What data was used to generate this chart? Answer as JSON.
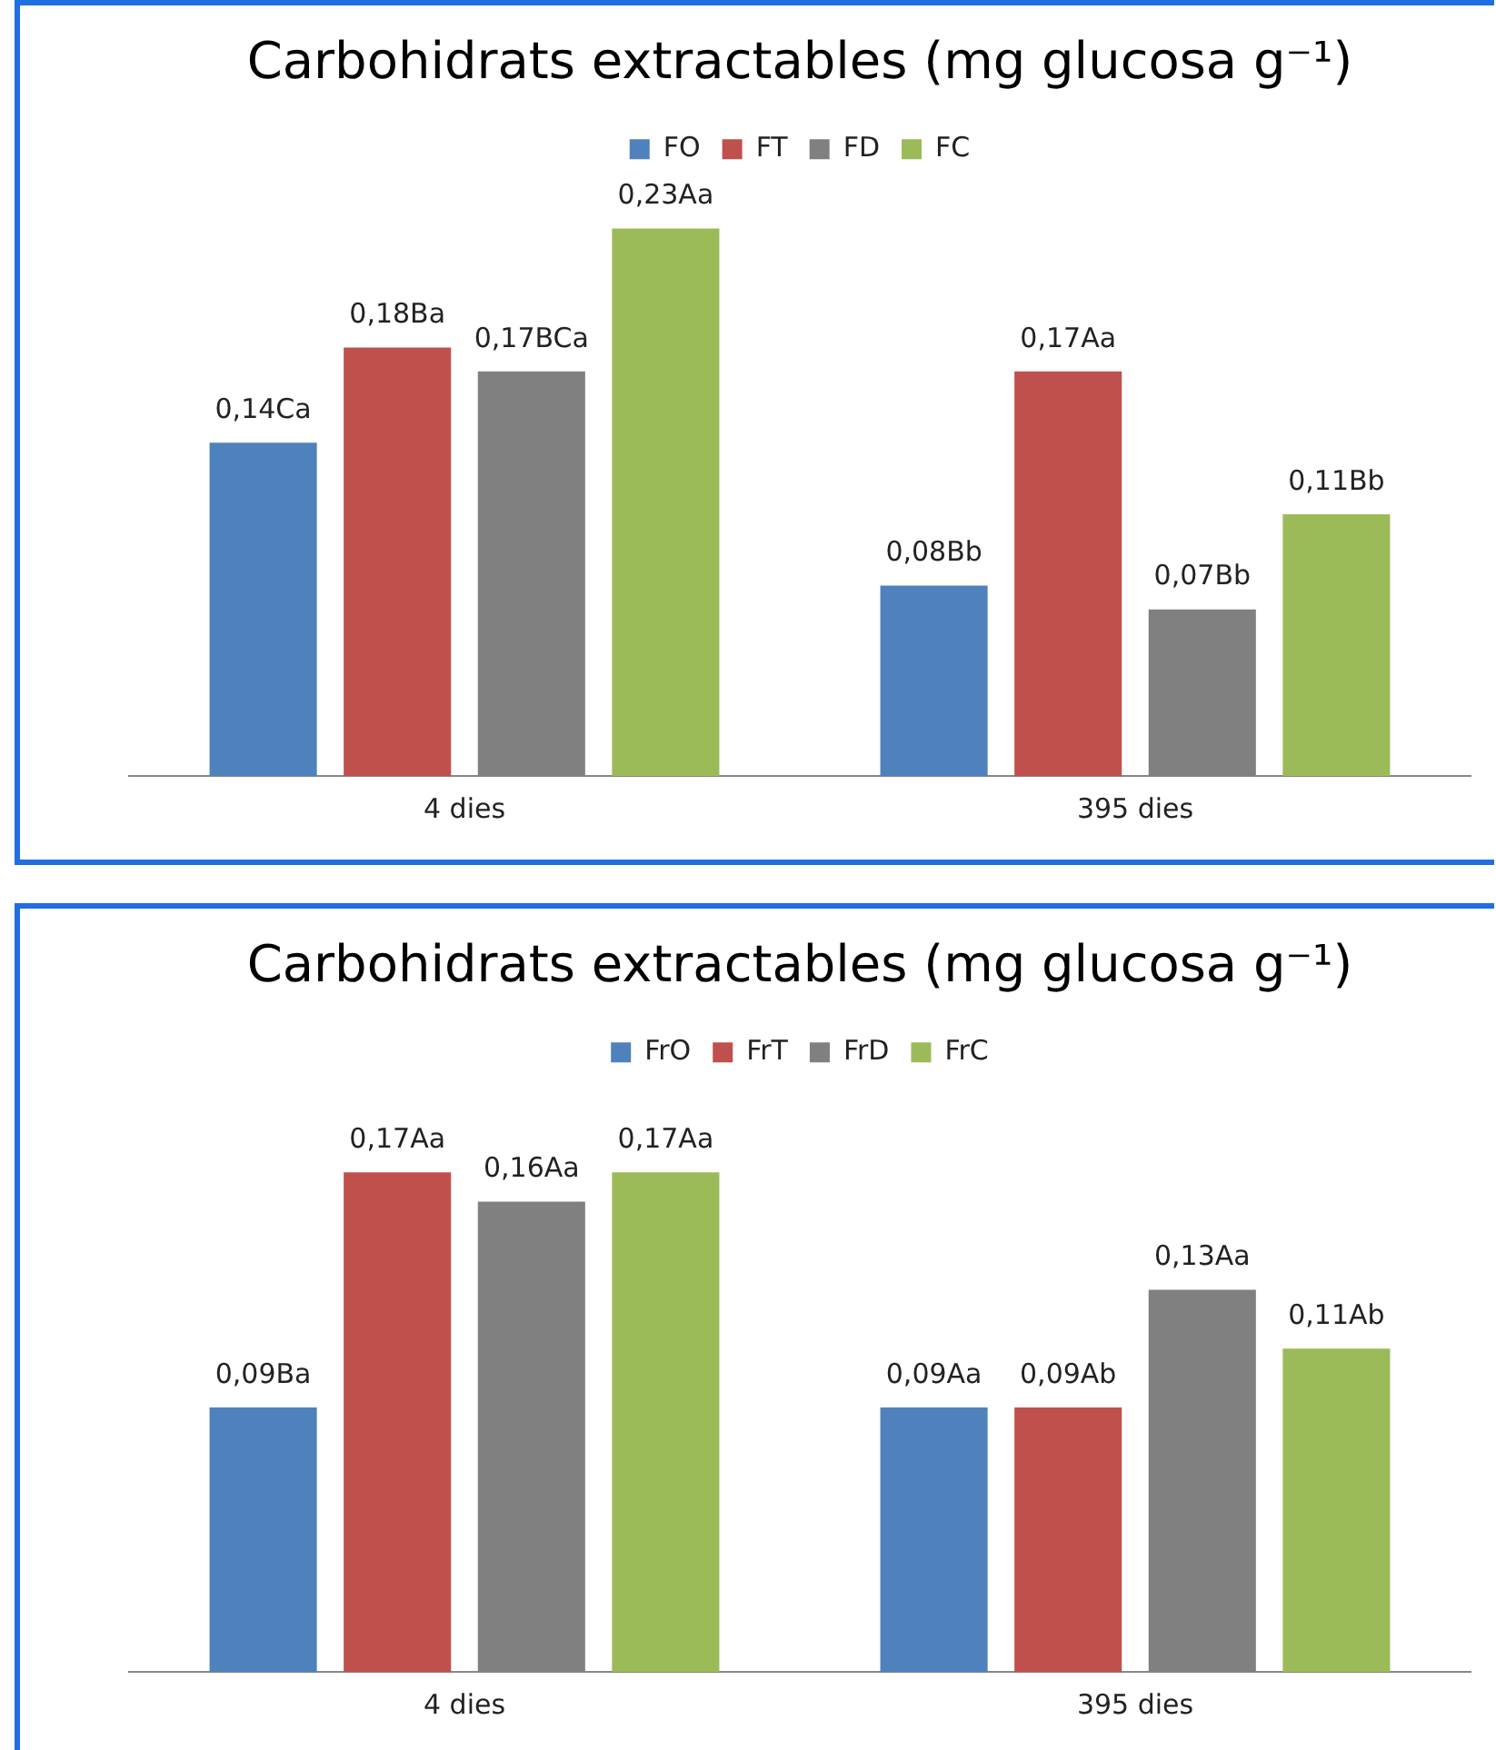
{
  "chart_data": [
    {
      "type": "bar",
      "title": "Carbohidrats extractables (mg glucosa g⁻¹)",
      "categories": [
        "4 dies",
        "395 dies"
      ],
      "legend": "top",
      "grid": false,
      "series": [
        {
          "name": "FO",
          "color": "#4f81bd",
          "values": [
            0.14,
            0.08
          ],
          "value_labels": [
            "0,14Ca",
            "0,08Bb"
          ]
        },
        {
          "name": "FT",
          "color": "#c0504d",
          "values": [
            0.18,
            0.17
          ],
          "value_labels": [
            "0,18Ba",
            "0,17Aa"
          ]
        },
        {
          "name": "FD",
          "color": "#808080",
          "values": [
            0.17,
            0.07
          ],
          "value_labels": [
            "0,17BCa",
            "0,07Bb"
          ]
        },
        {
          "name": "FC",
          "color": "#9bbb59",
          "values": [
            0.23,
            0.11
          ],
          "value_labels": [
            "0,23Aa",
            "0,11Bb"
          ]
        }
      ]
    },
    {
      "type": "bar",
      "title": "Carbohidrats extractables (mg glucosa g⁻¹)",
      "categories": [
        "4 dies",
        "395 dies"
      ],
      "legend": "top",
      "grid": false,
      "series": [
        {
          "name": "FrO",
          "color": "#4f81bd",
          "values": [
            0.09,
            0.09
          ],
          "value_labels": [
            "0,09Ba",
            "0,09Aa"
          ]
        },
        {
          "name": "FrT",
          "color": "#c0504d",
          "values": [
            0.17,
            0.09
          ],
          "value_labels": [
            "0,17Aa",
            "0,09Ab"
          ]
        },
        {
          "name": "FrD",
          "color": "#808080",
          "values": [
            0.16,
            0.13
          ],
          "value_labels": [
            "0,16Aa",
            "0,13Aa"
          ]
        },
        {
          "name": "FrC",
          "color": "#9bbb59",
          "values": [
            0.17,
            0.11
          ],
          "value_labels": [
            "0,17Aa",
            "0,11Ab"
          ]
        }
      ]
    }
  ]
}
